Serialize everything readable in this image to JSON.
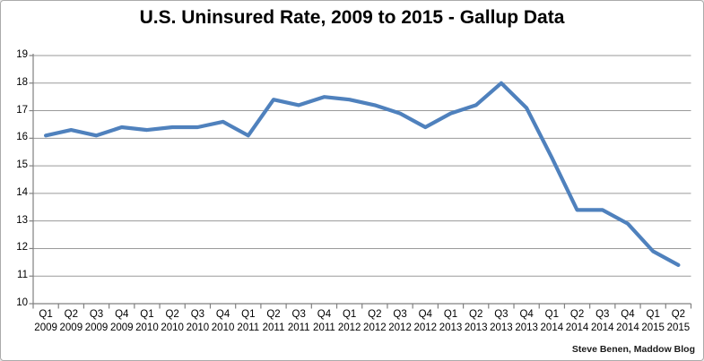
{
  "chart_data": {
    "type": "line",
    "title": "U.S. Uninsured Rate, 2009 to 2015 - Gallup Data",
    "credit": "Steve Benen, Maddow Blog",
    "xlabel": "",
    "ylabel": "",
    "ylim": [
      10,
      19
    ],
    "y_ticks": [
      19,
      18,
      17,
      16,
      15,
      14,
      13,
      12,
      11,
      10
    ],
    "grid": true,
    "legend": "none",
    "line_color": "#4F81BD",
    "grid_color": "#9a9a9a",
    "axis_color": "#808080",
    "categories": [
      {
        "quarter": "Q1",
        "year": "2009"
      },
      {
        "quarter": "Q2",
        "year": "2009"
      },
      {
        "quarter": "Q3",
        "year": "2009"
      },
      {
        "quarter": "Q4",
        "year": "2009"
      },
      {
        "quarter": "Q1",
        "year": "2010"
      },
      {
        "quarter": "Q2",
        "year": "2010"
      },
      {
        "quarter": "Q3",
        "year": "2010"
      },
      {
        "quarter": "Q4",
        "year": "2010"
      },
      {
        "quarter": "Q1",
        "year": "2011"
      },
      {
        "quarter": "Q2",
        "year": "2011"
      },
      {
        "quarter": "Q3",
        "year": "2011"
      },
      {
        "quarter": "Q4",
        "year": "2011"
      },
      {
        "quarter": "Q1",
        "year": "2012"
      },
      {
        "quarter": "Q2",
        "year": "2012"
      },
      {
        "quarter": "Q3",
        "year": "2012"
      },
      {
        "quarter": "Q4",
        "year": "2012"
      },
      {
        "quarter": "Q1",
        "year": "2013"
      },
      {
        "quarter": "Q2",
        "year": "2013"
      },
      {
        "quarter": "Q3",
        "year": "2013"
      },
      {
        "quarter": "Q4",
        "year": "2013"
      },
      {
        "quarter": "Q1",
        "year": "2014"
      },
      {
        "quarter": "Q2",
        "year": "2014"
      },
      {
        "quarter": "Q3",
        "year": "2014"
      },
      {
        "quarter": "Q4",
        "year": "2014"
      },
      {
        "quarter": "Q1",
        "year": "2015"
      },
      {
        "quarter": "Q2",
        "year": "2015"
      }
    ],
    "values": [
      16.1,
      16.3,
      16.1,
      16.4,
      16.3,
      16.4,
      16.4,
      16.6,
      16.1,
      17.4,
      17.2,
      17.5,
      17.4,
      17.2,
      16.9,
      16.4,
      16.9,
      17.2,
      18.0,
      17.1,
      15.3,
      13.4,
      13.4,
      12.9,
      11.9,
      11.4
    ]
  }
}
